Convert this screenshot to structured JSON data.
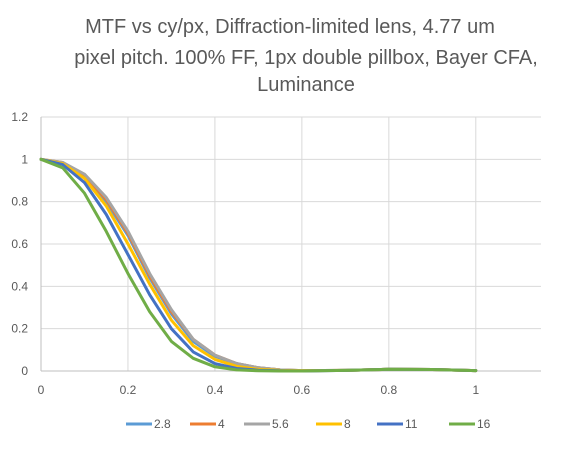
{
  "chart_data": {
    "type": "line",
    "title_lines": [
      "MTF vs cy/px, Diffraction-limited lens, 4.77 um",
      "pixel pitch. 100% FF, 1px double pillbox, Bayer CFA,",
      "Luminance"
    ],
    "xlim": [
      0,
      1.15
    ],
    "ylim": [
      0,
      1.2
    ],
    "x_ticks": [
      0,
      0.2,
      0.4,
      0.6,
      0.8,
      1
    ],
    "y_ticks": [
      0,
      0.2,
      0.4,
      0.6,
      0.8,
      1,
      1.2
    ],
    "grid": "major",
    "legend_position": "bottom",
    "series": [
      {
        "name": "2.8",
        "color": "#5b9bd5",
        "points": [
          [
            0,
            1
          ],
          [
            0.05,
            0.98
          ],
          [
            0.1,
            0.92
          ],
          [
            0.15,
            0.8
          ],
          [
            0.2,
            0.64
          ],
          [
            0.25,
            0.44
          ],
          [
            0.3,
            0.27
          ],
          [
            0.35,
            0.14
          ],
          [
            0.4,
            0.07
          ],
          [
            0.45,
            0.035
          ],
          [
            0.5,
            0.015
          ],
          [
            0.55,
            0.005
          ],
          [
            0.6,
            0.002
          ],
          [
            0.7,
            0.003
          ],
          [
            0.8,
            0.008
          ],
          [
            0.9,
            0.007
          ],
          [
            1,
            0.002
          ]
        ]
      },
      {
        "name": "4",
        "color": "#ed7d31",
        "points": [
          [
            0,
            1
          ],
          [
            0.05,
            0.985
          ],
          [
            0.1,
            0.925
          ],
          [
            0.15,
            0.81
          ],
          [
            0.2,
            0.65
          ],
          [
            0.25,
            0.45
          ],
          [
            0.3,
            0.28
          ],
          [
            0.35,
            0.15
          ],
          [
            0.4,
            0.075
          ],
          [
            0.45,
            0.035
          ],
          [
            0.5,
            0.015
          ],
          [
            0.55,
            0.005
          ],
          [
            0.6,
            0.002
          ],
          [
            0.7,
            0.003
          ],
          [
            0.8,
            0.008
          ],
          [
            0.9,
            0.007
          ],
          [
            1,
            0.002
          ]
        ]
      },
      {
        "name": "5.6",
        "color": "#a5a5a5",
        "points": [
          [
            0,
            1
          ],
          [
            0.05,
            0.985
          ],
          [
            0.1,
            0.93
          ],
          [
            0.15,
            0.82
          ],
          [
            0.2,
            0.66
          ],
          [
            0.25,
            0.46
          ],
          [
            0.3,
            0.29
          ],
          [
            0.35,
            0.15
          ],
          [
            0.4,
            0.075
          ],
          [
            0.45,
            0.035
          ],
          [
            0.5,
            0.015
          ],
          [
            0.55,
            0.005
          ],
          [
            0.6,
            0.002
          ],
          [
            0.7,
            0.003
          ],
          [
            0.8,
            0.008
          ],
          [
            0.9,
            0.007
          ],
          [
            1,
            0.002
          ]
        ]
      },
      {
        "name": "8",
        "color": "#ffc000",
        "points": [
          [
            0,
            1
          ],
          [
            0.05,
            0.98
          ],
          [
            0.1,
            0.91
          ],
          [
            0.15,
            0.78
          ],
          [
            0.2,
            0.6
          ],
          [
            0.25,
            0.41
          ],
          [
            0.3,
            0.24
          ],
          [
            0.35,
            0.12
          ],
          [
            0.4,
            0.055
          ],
          [
            0.45,
            0.022
          ],
          [
            0.5,
            0.008
          ],
          [
            0.55,
            0.003
          ],
          [
            0.6,
            0.001
          ],
          [
            0.7,
            0.003
          ],
          [
            0.8,
            0.008
          ],
          [
            0.9,
            0.007
          ],
          [
            1,
            0.002
          ]
        ]
      },
      {
        "name": "11",
        "color": "#4472c4",
        "points": [
          [
            0,
            1
          ],
          [
            0.05,
            0.975
          ],
          [
            0.1,
            0.89
          ],
          [
            0.15,
            0.74
          ],
          [
            0.2,
            0.55
          ],
          [
            0.25,
            0.36
          ],
          [
            0.3,
            0.2
          ],
          [
            0.35,
            0.09
          ],
          [
            0.4,
            0.035
          ],
          [
            0.45,
            0.012
          ],
          [
            0.5,
            0.004
          ],
          [
            0.55,
            0.001
          ],
          [
            0.6,
            0
          ],
          [
            0.7,
            0.003
          ],
          [
            0.8,
            0.008
          ],
          [
            0.9,
            0.007
          ],
          [
            1,
            0.002
          ]
        ]
      },
      {
        "name": "16",
        "color": "#70ad47",
        "points": [
          [
            0,
            1
          ],
          [
            0.05,
            0.96
          ],
          [
            0.1,
            0.84
          ],
          [
            0.15,
            0.66
          ],
          [
            0.2,
            0.46
          ],
          [
            0.25,
            0.28
          ],
          [
            0.3,
            0.14
          ],
          [
            0.35,
            0.06
          ],
          [
            0.4,
            0.02
          ],
          [
            0.45,
            0.005
          ],
          [
            0.5,
            0.001
          ],
          [
            0.55,
            0
          ],
          [
            0.6,
            0
          ],
          [
            0.7,
            0.003
          ],
          [
            0.8,
            0.008
          ],
          [
            0.9,
            0.007
          ],
          [
            1,
            0.002
          ]
        ]
      }
    ]
  }
}
